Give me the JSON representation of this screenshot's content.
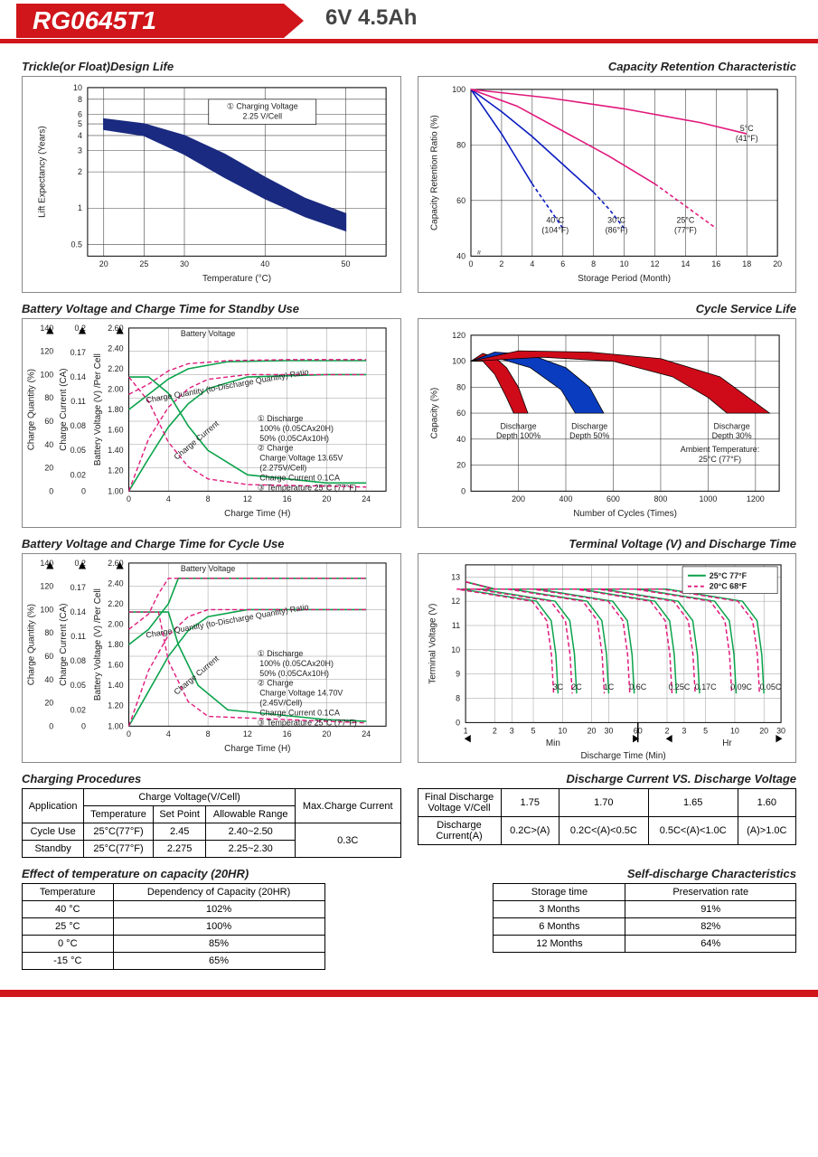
{
  "header": {
    "model": "RG0645T1",
    "rating": "6V  4.5Ah"
  },
  "chart_trickle": {
    "title": "Trickle(or Float)Design Life",
    "type": "area-band",
    "xlabel": "Temperature (°C)",
    "ylabel": "Lift Expectancy (Years)",
    "xlim": [
      18,
      55
    ],
    "ylim": [
      0.4,
      10
    ],
    "yscale": "log",
    "xticks": [
      20,
      25,
      30,
      40,
      50
    ],
    "yticks": [
      0.5,
      1,
      2,
      3,
      4,
      5,
      6,
      8,
      10
    ],
    "gridcolor": "#444",
    "area_color": "#1a2a80",
    "band_upper": [
      [
        20,
        5.5
      ],
      [
        25,
        5.0
      ],
      [
        30,
        4.0
      ],
      [
        35,
        2.8
      ],
      [
        40,
        1.8
      ],
      [
        45,
        1.2
      ],
      [
        50,
        0.9
      ]
    ],
    "band_lower": [
      [
        20,
        4.5
      ],
      [
        25,
        4.0
      ],
      [
        30,
        2.8
      ],
      [
        35,
        1.8
      ],
      [
        40,
        1.2
      ],
      [
        45,
        0.85
      ],
      [
        50,
        0.65
      ]
    ],
    "annot": "① Charging Voltage\n2.25 V/Cell",
    "annot_box": true
  },
  "chart_capret": {
    "title": "Capacity Retention Characteristic",
    "type": "line",
    "xlabel": "Storage Period (Month)",
    "ylabel": "Capacity Retention Ratio (%)",
    "xlim": [
      0,
      20
    ],
    "ylim": [
      40,
      100
    ],
    "xticks": [
      0,
      2,
      4,
      6,
      8,
      10,
      12,
      14,
      16,
      18,
      20
    ],
    "yticks": [
      40,
      60,
      80,
      100
    ],
    "gridcolor": "#444",
    "series": [
      {
        "label": "40°C",
        "sub": "(104°F)",
        "color": "#0a1cc0",
        "solid": [
          [
            0,
            100
          ],
          [
            1,
            92
          ],
          [
            2,
            84
          ],
          [
            3,
            75
          ],
          [
            4,
            66
          ]
        ],
        "dash": [
          [
            4,
            66
          ],
          [
            5,
            58
          ],
          [
            6,
            50
          ]
        ]
      },
      {
        "label": "30°C",
        "sub": "(86°F)",
        "color": "#0a1cc0",
        "solid": [
          [
            0,
            100
          ],
          [
            2,
            92
          ],
          [
            4,
            83
          ],
          [
            6,
            73
          ],
          [
            8,
            63
          ]
        ],
        "dash": [
          [
            8,
            63
          ],
          [
            9,
            57
          ],
          [
            10,
            50
          ]
        ]
      },
      {
        "label": "25°C",
        "sub": "(77°F)",
        "color": "#e0197c",
        "solid": [
          [
            0,
            100
          ],
          [
            3,
            94
          ],
          [
            6,
            85
          ],
          [
            9,
            76
          ],
          [
            12,
            66
          ]
        ],
        "dash": [
          [
            12,
            66
          ],
          [
            14,
            58
          ],
          [
            16,
            50
          ]
        ]
      },
      {
        "label": "5°C",
        "sub": "(41°F)",
        "color": "#e0197c",
        "solid": [
          [
            0,
            100
          ],
          [
            5,
            97
          ],
          [
            10,
            93
          ],
          [
            15,
            88
          ],
          [
            18,
            84
          ]
        ],
        "dash": []
      }
    ]
  },
  "chart_standby": {
    "title": "Battery Voltage and Charge Time for Standby Use",
    "type": "multi-axis-line",
    "xlabel": "Charge Time (H)",
    "y1label": "Charge Quantity (%)",
    "y2label": "Charge Current (CA)",
    "y3label": "Battery Voltage (V) /Per Cell",
    "xlim": [
      0,
      26
    ],
    "xticks": [
      0,
      4,
      8,
      12,
      16,
      20,
      24
    ],
    "y1lim": [
      0,
      140
    ],
    "y1ticks": [
      0,
      20,
      40,
      60,
      80,
      100,
      120,
      140
    ],
    "y2lim": [
      0,
      0.2
    ],
    "y2ticks": [
      0,
      0.02,
      0.05,
      0.08,
      0.11,
      0.14,
      0.17,
      0.2
    ],
    "y3lim": [
      1.0,
      2.6
    ],
    "y3ticks": [
      1.0,
      1.2,
      1.4,
      1.6,
      1.8,
      2.0,
      2.2,
      2.4,
      2.6
    ],
    "gridcolor": "#999",
    "green": "#0aa24a",
    "pink": "#e0197c",
    "curves": {
      "bv_100": [
        [
          0,
          1.8
        ],
        [
          2,
          1.95
        ],
        [
          4,
          2.1
        ],
        [
          6,
          2.2
        ],
        [
          10,
          2.27
        ],
        [
          16,
          2.28
        ],
        [
          24,
          2.28
        ]
      ],
      "bv_50": [
        [
          0,
          1.95
        ],
        [
          2,
          2.05
        ],
        [
          4,
          2.18
        ],
        [
          6,
          2.25
        ],
        [
          10,
          2.28
        ],
        [
          16,
          2.29
        ],
        [
          24,
          2.29
        ]
      ],
      "cq_100": [
        [
          0,
          0
        ],
        [
          2,
          28
        ],
        [
          4,
          55
        ],
        [
          6,
          75
        ],
        [
          8,
          88
        ],
        [
          12,
          98
        ],
        [
          20,
          100
        ],
        [
          24,
          100
        ]
      ],
      "cq_50": [
        [
          0,
          0
        ],
        [
          2,
          45
        ],
        [
          4,
          72
        ],
        [
          6,
          88
        ],
        [
          8,
          96
        ],
        [
          12,
          100
        ],
        [
          24,
          100
        ]
      ],
      "cc_100": [
        [
          0,
          0.14
        ],
        [
          2,
          0.14
        ],
        [
          4,
          0.12
        ],
        [
          6,
          0.08
        ],
        [
          8,
          0.05
        ],
        [
          12,
          0.02
        ],
        [
          20,
          0.01
        ],
        [
          24,
          0.01
        ]
      ],
      "cc_50": [
        [
          0,
          0.14
        ],
        [
          2,
          0.11
        ],
        [
          4,
          0.06
        ],
        [
          6,
          0.03
        ],
        [
          8,
          0.015
        ],
        [
          12,
          0.008
        ],
        [
          24,
          0.005
        ]
      ]
    },
    "annot_bv": "Battery Voltage",
    "annot_cqr": "Charge Quantity (to-Discharge Quantity) Ratio",
    "annot_cc": "Charge Current",
    "annot_block": "① Discharge\n     100% (0.05CAx20H)\n     50% (0.05CAx10H)\n② Charge\n     Charge Voltage 13.65V\n     (2.275V/Cell)\n     Charge Current 0.1CA\n③ Temperature 25°C (77°F)"
  },
  "chart_cyclelife": {
    "title": "Cycle Service Life",
    "type": "area",
    "xlabel": "Number of Cycles (Times)",
    "ylabel": "Capacity (%)",
    "xlim": [
      0,
      1300
    ],
    "xticks": [
      200,
      400,
      600,
      800,
      1000,
      1200
    ],
    "ylim": [
      0,
      120
    ],
    "yticks": [
      0,
      20,
      40,
      60,
      80,
      100,
      120
    ],
    "gridcolor": "#444",
    "bands": [
      {
        "label": "Discharge\nDepth 100%",
        "color": "#cf0b1a",
        "up": [
          [
            0,
            100
          ],
          [
            50,
            106
          ],
          [
            100,
            103
          ],
          [
            150,
            95
          ],
          [
            200,
            80
          ],
          [
            240,
            60
          ]
        ],
        "lo": [
          [
            0,
            100
          ],
          [
            50,
            100
          ],
          [
            100,
            90
          ],
          [
            150,
            72
          ],
          [
            180,
            60
          ]
        ]
      },
      {
        "label": "Discharge\nDepth 50%",
        "color": "#0a3cc0",
        "up": [
          [
            0,
            100
          ],
          [
            100,
            107
          ],
          [
            250,
            105
          ],
          [
            400,
            95
          ],
          [
            500,
            80
          ],
          [
            560,
            60
          ]
        ],
        "lo": [
          [
            0,
            100
          ],
          [
            120,
            102
          ],
          [
            250,
            95
          ],
          [
            380,
            78
          ],
          [
            440,
            60
          ]
        ]
      },
      {
        "label": "Discharge\nDepth 30%",
        "color": "#cf0b1a",
        "up": [
          [
            0,
            100
          ],
          [
            200,
            108
          ],
          [
            500,
            107
          ],
          [
            800,
            102
          ],
          [
            1050,
            88
          ],
          [
            1200,
            68
          ],
          [
            1260,
            60
          ]
        ],
        "lo": [
          [
            0,
            100
          ],
          [
            300,
            103
          ],
          [
            600,
            100
          ],
          [
            850,
            88
          ],
          [
            1000,
            72
          ],
          [
            1080,
            60
          ]
        ]
      }
    ],
    "annot_temp": "Ambient Temperature:\n25°C (77°F)"
  },
  "chart_cycle": {
    "title": "Battery Voltage and Charge Time for Cycle Use",
    "reuse": "chart_standby",
    "annot_block": "① Discharge\n     100% (0.05CAx20H)\n     50% (0.05CAx10H)\n② Charge\n     Charge Voltage 14.70V\n     (2.45V/Cell)\n     Charge Current 0.1CA\n③ Temperature 25°C (77°F)",
    "curves": {
      "bv_100": [
        [
          0,
          1.8
        ],
        [
          2,
          1.95
        ],
        [
          4,
          2.2
        ],
        [
          5,
          2.45
        ],
        [
          10,
          2.45
        ],
        [
          24,
          2.45
        ]
      ],
      "bv_50": [
        [
          0,
          1.95
        ],
        [
          2,
          2.1
        ],
        [
          3,
          2.3
        ],
        [
          4,
          2.45
        ],
        [
          10,
          2.45
        ],
        [
          24,
          2.45
        ]
      ],
      "cq_100": [
        [
          0,
          0
        ],
        [
          2,
          30
        ],
        [
          4,
          60
        ],
        [
          6,
          82
        ],
        [
          8,
          94
        ],
        [
          12,
          100
        ],
        [
          24,
          100
        ]
      ],
      "cq_50": [
        [
          0,
          0
        ],
        [
          2,
          48
        ],
        [
          4,
          78
        ],
        [
          6,
          94
        ],
        [
          8,
          100
        ],
        [
          24,
          100
        ]
      ],
      "cc_100": [
        [
          0,
          0.14
        ],
        [
          4,
          0.14
        ],
        [
          5,
          0.1
        ],
        [
          7,
          0.05
        ],
        [
          10,
          0.02
        ],
        [
          20,
          0.008
        ],
        [
          24,
          0.006
        ]
      ],
      "cc_50": [
        [
          0,
          0.14
        ],
        [
          3,
          0.14
        ],
        [
          4,
          0.08
        ],
        [
          6,
          0.03
        ],
        [
          8,
          0.012
        ],
        [
          24,
          0.004
        ]
      ]
    }
  },
  "chart_terminal": {
    "title": "Terminal Voltage (V) and Discharge Time",
    "type": "line-logx",
    "xlabel": "Discharge Time (Min)",
    "ylabel": "Terminal Voltage (V)",
    "ylim": [
      7,
      13.5
    ],
    "yticks": [
      0,
      8,
      9,
      10,
      11,
      12,
      13
    ],
    "gridcolor": "#999",
    "legend": [
      {
        "label": "25°C 77°F",
        "color": "#0aa24a",
        "dash": false
      },
      {
        "label": "20°C 68°F",
        "color": "#e0197c",
        "dash": true
      }
    ],
    "curves_25": [
      "3C",
      "2C",
      "1C",
      "0.6C",
      "0.25C",
      "0.17C",
      "0.09C",
      "0.05C"
    ],
    "green": "#0aa24a",
    "pink": "#e0197c",
    "xsections": [
      "1",
      "2",
      "3",
      "5",
      "10",
      "20",
      "30",
      "60",
      "2",
      "3",
      "5",
      "10",
      "20",
      "30"
    ],
    "xleft": "Min",
    "xright": "Hr"
  },
  "tables": {
    "charging": {
      "title": "Charging Procedures",
      "head1": [
        "Application",
        "Charge Voltage(V/Cell)",
        "Max.Charge Current"
      ],
      "head2": [
        "Temperature",
        "Set Point",
        "Allowable Range"
      ],
      "rows": [
        [
          "Cycle Use",
          "25°C(77°F)",
          "2.45",
          "2.40~2.50",
          "0.3C"
        ],
        [
          "Standby",
          "25°C(77°F)",
          "2.275",
          "2.25~2.30",
          ""
        ]
      ]
    },
    "discharge": {
      "title": "Discharge Current VS. Discharge Voltage",
      "rows": [
        [
          "Final Discharge Voltage V/Cell",
          "1.75",
          "1.70",
          "1.65",
          "1.60"
        ],
        [
          "Discharge Current(A)",
          "0.2C>(A)",
          "0.2C<(A)<0.5C",
          "0.5C<(A)<1.0C",
          "(A)>1.0C"
        ]
      ]
    },
    "tempcap": {
      "title": "Effect of temperature on capacity (20HR)",
      "head": [
        "Temperature",
        "Dependency of Capacity (20HR)"
      ],
      "rows": [
        [
          "40 °C",
          "102%"
        ],
        [
          "25 °C",
          "100%"
        ],
        [
          "0 °C",
          "85%"
        ],
        [
          "-15 °C",
          "65%"
        ]
      ]
    },
    "selfdis": {
      "title": "Self-discharge Characteristics",
      "head": [
        "Storage time",
        "Preservation rate"
      ],
      "rows": [
        [
          "3 Months",
          "91%"
        ],
        [
          "6 Months",
          "82%"
        ],
        [
          "12 Months",
          "64%"
        ]
      ]
    }
  }
}
